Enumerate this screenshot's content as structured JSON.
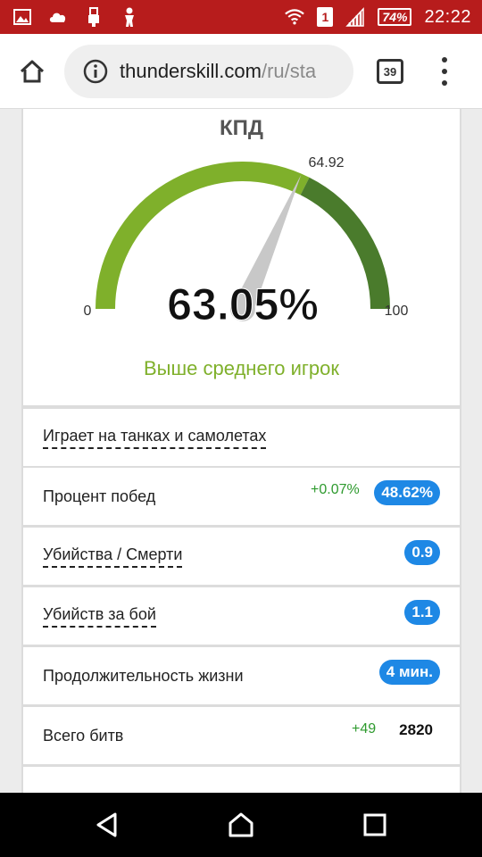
{
  "status_bar": {
    "sim_number": "1",
    "battery": "74%",
    "time": "22:22",
    "icons": [
      "gallery-icon",
      "cloud-icon",
      "usb-icon",
      "figure-icon",
      "wifi-icon",
      "signal-icon",
      "battery-icon"
    ]
  },
  "browser": {
    "url_domain": "thunderskill.com",
    "url_path": "/ru/sta",
    "tab_count": "39"
  },
  "gauge": {
    "title": "КПД",
    "value_text": "63.05%",
    "value": 63.05,
    "average": 64.92,
    "average_label": "64.92",
    "min_label": "0",
    "max_label": "100",
    "caption": "Выше среднего игрок",
    "colors": {
      "below": "#7fb02b",
      "above": "#4a7b2c",
      "needle": "#c8c8c8",
      "caption": "#7fb02b"
    }
  },
  "stats": {
    "plays_on": "Играет на танках и самолетах",
    "win_rate": {
      "label": "Процент побед",
      "delta": "+0.07%",
      "value": "48.62%"
    },
    "kd": {
      "label": "Убийства / Смерти",
      "value": "0.9"
    },
    "kills_per_battle": {
      "label": "Убийств за бой",
      "value": "1.1"
    },
    "lifespan": {
      "label": "Продолжительность жизни",
      "value": "4 мин."
    },
    "total_battles": {
      "label": "Всего битв",
      "delta": "+49",
      "value": "2820"
    }
  },
  "colors": {
    "status_bar": "#b71c1c",
    "badge": "#1e88e5",
    "delta": "#2e9a2e"
  }
}
